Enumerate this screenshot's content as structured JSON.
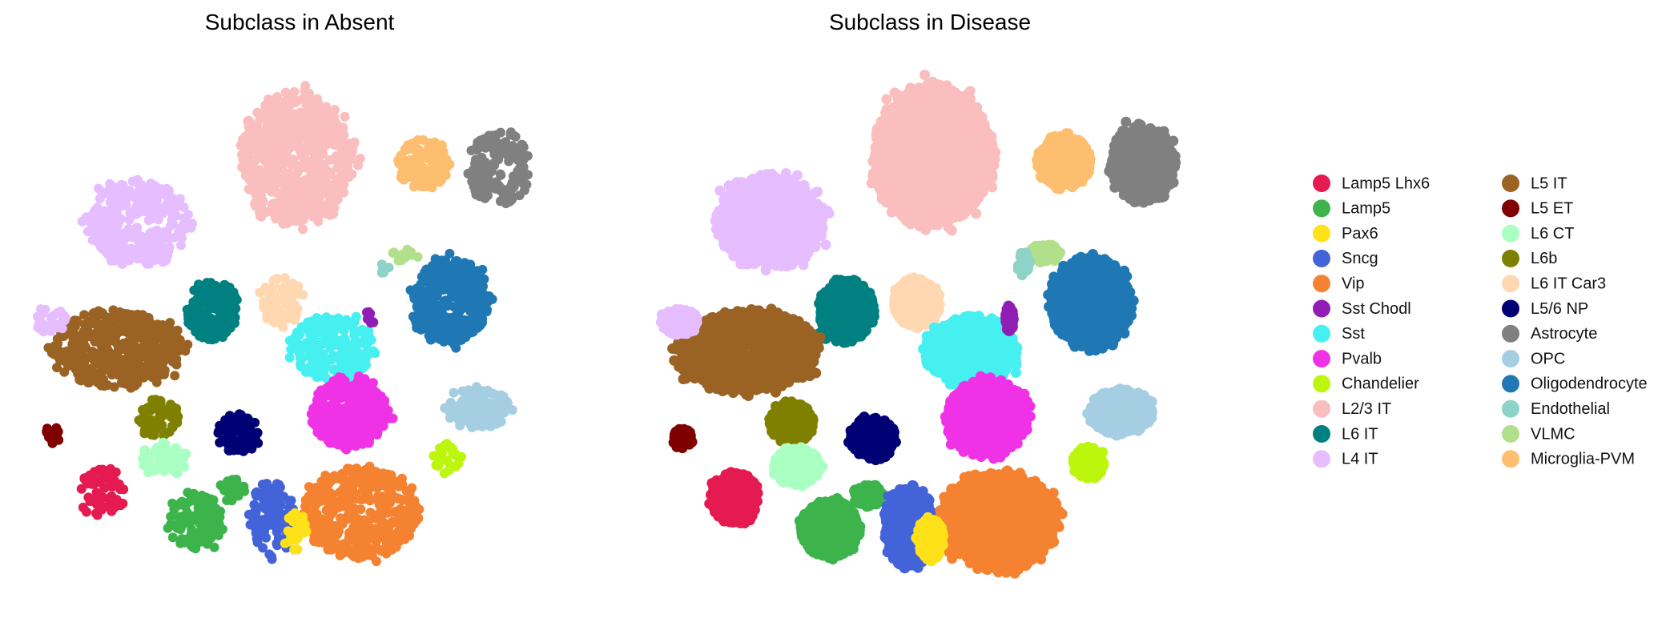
{
  "chart_data": {
    "type": "scatter",
    "panels": [
      {
        "title": "Subclass in Absent"
      },
      {
        "title": "Subclass in Disease"
      }
    ],
    "xlabel": "",
    "ylabel": "",
    "grid": false,
    "axes_visible": false,
    "legend_placement": "right",
    "legend_columns": 2,
    "categories": [
      {
        "name": "Lamp5 Lhx6",
        "color": "#e41a50"
      },
      {
        "name": "Lamp5",
        "color": "#3cb44b"
      },
      {
        "name": "Pax6",
        "color": "#ffe119"
      },
      {
        "name": "Sncg",
        "color": "#4363d8"
      },
      {
        "name": "Vip",
        "color": "#f58231"
      },
      {
        "name": "Sst Chodl",
        "color": "#911eb4"
      },
      {
        "name": "Sst",
        "color": "#46f0f0"
      },
      {
        "name": "Pvalb",
        "color": "#f032e6"
      },
      {
        "name": "Chandelier",
        "color": "#bcf60c"
      },
      {
        "name": "L2/3 IT",
        "color": "#fabebe"
      },
      {
        "name": "L6 IT",
        "color": "#008080"
      },
      {
        "name": "L4 IT",
        "color": "#e6beff"
      },
      {
        "name": "L5 IT",
        "color": "#9a6324"
      },
      {
        "name": "L5 ET",
        "color": "#800000"
      },
      {
        "name": "L6 CT",
        "color": "#aaffc3"
      },
      {
        "name": "L6b",
        "color": "#808000"
      },
      {
        "name": "L6 IT Car3",
        "color": "#ffd8b1"
      },
      {
        "name": "L5/6 NP",
        "color": "#000075"
      },
      {
        "name": "Astrocyte",
        "color": "#808080"
      },
      {
        "name": "OPC",
        "color": "#a6cee3"
      },
      {
        "name": "Oligodendrocyte",
        "color": "#1f78b4"
      },
      {
        "name": "Endothelial",
        "color": "#8dd3c7"
      },
      {
        "name": "VLMC",
        "color": "#b2df8a"
      },
      {
        "name": "Microglia-PVM",
        "color": "#fdbf6f"
      }
    ],
    "clusters": [
      {
        "category": "L2/3 IT",
        "cx": 0.5,
        "cy": 0.18,
        "rx": 0.11,
        "ry": 0.13,
        "n_absent": 650,
        "n_disease": 2600
      },
      {
        "category": "L4 IT",
        "cx": 0.2,
        "cy": 0.3,
        "rx": 0.1,
        "ry": 0.085,
        "n_absent": 320,
        "n_disease": 1400
      },
      {
        "category": "Microglia-PVM",
        "cx": 0.74,
        "cy": 0.19,
        "rx": 0.05,
        "ry": 0.05,
        "n_absent": 120,
        "n_disease": 500
      },
      {
        "category": "Astrocyte",
        "cx": 0.885,
        "cy": 0.195,
        "rx": 0.06,
        "ry": 0.075,
        "n_absent": 160,
        "n_disease": 700
      },
      {
        "category": "VLMC",
        "cx": 0.705,
        "cy": 0.36,
        "rx": 0.028,
        "ry": 0.018,
        "n_absent": 12,
        "n_disease": 90
      },
      {
        "category": "Endothelial",
        "cx": 0.665,
        "cy": 0.38,
        "rx": 0.012,
        "ry": 0.022,
        "n_absent": 5,
        "n_disease": 35
      },
      {
        "category": "Oligodendrocyte",
        "cx": 0.79,
        "cy": 0.45,
        "rx": 0.075,
        "ry": 0.085,
        "n_absent": 360,
        "n_disease": 1500
      },
      {
        "category": "L6 IT",
        "cx": 0.34,
        "cy": 0.465,
        "rx": 0.052,
        "ry": 0.06,
        "n_absent": 150,
        "n_disease": 650
      },
      {
        "category": "L6 IT Car3",
        "cx": 0.47,
        "cy": 0.45,
        "rx": 0.045,
        "ry": 0.045,
        "n_absent": 80,
        "n_disease": 420
      },
      {
        "category": "L5 IT",
        "cx": 0.16,
        "cy": 0.54,
        "rx": 0.13,
        "ry": 0.075,
        "n_absent": 450,
        "n_disease": 1900
      },
      {
        "category": "L4 IT",
        "cx": 0.035,
        "cy": 0.485,
        "rx": 0.035,
        "ry": 0.025,
        "n_absent": 30,
        "n_disease": 240
      },
      {
        "category": "Sst",
        "cx": 0.57,
        "cy": 0.54,
        "rx": 0.085,
        "ry": 0.065,
        "n_absent": 240,
        "n_disease": 950
      },
      {
        "category": "Sst Chodl",
        "cx": 0.64,
        "cy": 0.48,
        "rx": 0.008,
        "ry": 0.025,
        "n_absent": 8,
        "n_disease": 45
      },
      {
        "category": "Pvalb",
        "cx": 0.6,
        "cy": 0.66,
        "rx": 0.075,
        "ry": 0.07,
        "n_absent": 340,
        "n_disease": 1400
      },
      {
        "category": "OPC",
        "cx": 0.845,
        "cy": 0.65,
        "rx": 0.06,
        "ry": 0.042,
        "n_absent": 130,
        "n_disease": 520
      },
      {
        "category": "L6b",
        "cx": 0.24,
        "cy": 0.67,
        "rx": 0.042,
        "ry": 0.038,
        "n_absent": 60,
        "n_disease": 320
      },
      {
        "category": "L5/6 NP",
        "cx": 0.39,
        "cy": 0.7,
        "rx": 0.042,
        "ry": 0.04,
        "n_absent": 80,
        "n_disease": 380
      },
      {
        "category": "L5 ET",
        "cx": 0.04,
        "cy": 0.7,
        "rx": 0.018,
        "ry": 0.02,
        "n_absent": 12,
        "n_disease": 70
      },
      {
        "category": "L6 CT",
        "cx": 0.25,
        "cy": 0.75,
        "rx": 0.045,
        "ry": 0.035,
        "n_absent": 70,
        "n_disease": 420
      },
      {
        "category": "Chandelier",
        "cx": 0.785,
        "cy": 0.745,
        "rx": 0.028,
        "ry": 0.03,
        "n_absent": 25,
        "n_disease": 200
      },
      {
        "category": "Lamp5 Lhx6",
        "cx": 0.135,
        "cy": 0.81,
        "rx": 0.045,
        "ry": 0.048,
        "n_absent": 55,
        "n_disease": 480
      },
      {
        "category": "Lamp5",
        "cx": 0.31,
        "cy": 0.865,
        "rx": 0.055,
        "ry": 0.055,
        "n_absent": 110,
        "n_disease": 640
      },
      {
        "category": "Lamp5",
        "cx": 0.38,
        "cy": 0.805,
        "rx": 0.028,
        "ry": 0.022,
        "n_absent": 30,
        "n_disease": 110
      },
      {
        "category": "Sncg",
        "cx": 0.455,
        "cy": 0.86,
        "rx": 0.045,
        "ry": 0.075,
        "n_absent": 110,
        "n_disease": 560
      },
      {
        "category": "Vip",
        "cx": 0.62,
        "cy": 0.85,
        "rx": 0.11,
        "ry": 0.09,
        "n_absent": 420,
        "n_disease": 1700
      },
      {
        "category": "Pax6",
        "cx": 0.495,
        "cy": 0.885,
        "rx": 0.025,
        "ry": 0.04,
        "n_absent": 30,
        "n_disease": 150
      }
    ]
  }
}
